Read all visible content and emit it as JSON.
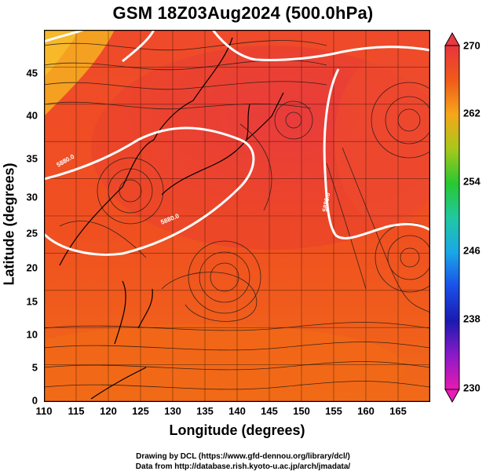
{
  "title": "GSM 18Z03Aug2024 (500.0hPa)",
  "xlabel": "Longitude (degrees)",
  "ylabel": "Latitude (degrees)",
  "x_ticks": [
    "110",
    "115",
    "120",
    "125",
    "130",
    "135",
    "140",
    "145",
    "150",
    "155",
    "160",
    "165"
  ],
  "y_ticks": [
    "0",
    "5",
    "10",
    "15",
    "20",
    "25",
    "30",
    "35",
    "40",
    "45"
  ],
  "colorbar_ticks": [
    "270",
    "262",
    "254",
    "246",
    "238",
    "230"
  ],
  "contour_labels": [
    "5880.0",
    "5880.0",
    "5880.0"
  ],
  "credit_line1": "Drawing by DCL (https://www.gfd-dennou.org/library/dcl/)",
  "credit_line2": "Data from http://database.rish.kyoto-u.ac.jp/arch/jmadata/",
  "colors": {
    "field_high": "#e8333a",
    "field_mid": "#f0541c",
    "field_warm": "#f58a12",
    "field_orange": "#f7a81a",
    "contour": "#ffffff",
    "streamline": "#1a1a1a",
    "coast": "#000000"
  },
  "chart_data": {
    "type": "heatmap",
    "variable": "temperature with streamlines and height contour",
    "xlim": [
      110,
      170
    ],
    "ylim": [
      0,
      50
    ],
    "colorbar_range": [
      230,
      270
    ],
    "contour_level": 5880.0
  }
}
